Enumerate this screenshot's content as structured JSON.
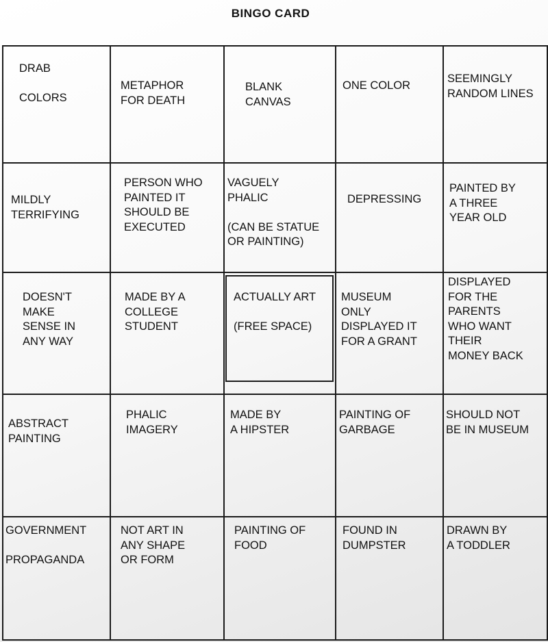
{
  "title": "BINGO CARD",
  "rows": [
    [
      {
        "lines": [
          "DRAB",
          "",
          "COLORS"
        ]
      },
      {
        "lines": [
          "METAPHOR",
          "FOR DEATH"
        ]
      },
      {
        "lines": [
          "BLANK",
          "CANVAS"
        ]
      },
      {
        "lines": [
          "ONE COLOR"
        ]
      },
      {
        "lines": [
          "SEEMINGLY",
          "RANDOM LINES"
        ]
      }
    ],
    [
      {
        "lines": [
          "MILDLY",
          "TERRIFYING"
        ]
      },
      {
        "lines": [
          "PERSON WHO",
          "PAINTED IT",
          "SHOULD BE",
          "EXECUTED"
        ]
      },
      {
        "lines": [
          "VAGUELY",
          "PHALIC",
          "",
          "(CAN BE STATUE",
          "OR PAINTING)"
        ]
      },
      {
        "lines": [
          "DEPRESSING"
        ]
      },
      {
        "lines": [
          "PAINTED BY",
          "A THREE",
          "YEAR OLD"
        ]
      }
    ],
    [
      {
        "lines": [
          "DOESN'T",
          "MAKE",
          "SENSE IN",
          "ANY WAY"
        ]
      },
      {
        "lines": [
          "MADE BY A",
          "COLLEGE",
          "STUDENT"
        ]
      },
      {
        "lines": [
          "ACTUALLY ART",
          "",
          "(FREE SPACE)"
        ],
        "free_space": true
      },
      {
        "lines": [
          "MUSEUM",
          "ONLY",
          "DISPLAYED IT",
          "FOR A GRANT"
        ]
      },
      {
        "lines": [
          "DISPLAYED",
          "FOR THE",
          "PARENTS",
          "WHO WANT",
          "THEIR",
          "MONEY BACK"
        ]
      }
    ],
    [
      {
        "lines": [
          "ABSTRACT",
          "PAINTING"
        ]
      },
      {
        "lines": [
          "PHALIC",
          "IMAGERY"
        ]
      },
      {
        "lines": [
          "MADE BY",
          "A HIPSTER"
        ]
      },
      {
        "lines": [
          "PAINTING OF",
          "GARBAGE"
        ]
      },
      {
        "lines": [
          "SHOULD NOT",
          "BE IN MUSEUM"
        ]
      }
    ],
    [
      {
        "lines": [
          "GOVERNMENT",
          "",
          "PROPAGANDA"
        ]
      },
      {
        "lines": [
          "NOT ART IN",
          "ANY SHAPE",
          "OR FORM"
        ]
      },
      {
        "lines": [
          "PAINTING OF",
          "FOOD"
        ]
      },
      {
        "lines": [
          "FOUND IN",
          "DUMPSTER"
        ]
      },
      {
        "lines": [
          "DRAWN BY",
          "A TODDLER"
        ]
      }
    ]
  ]
}
